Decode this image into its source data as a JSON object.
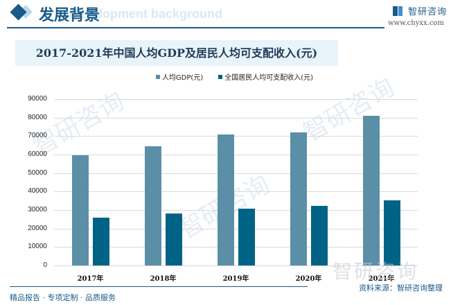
{
  "header": {
    "title": "发展背景",
    "subtitle_en": "Development background",
    "brand_name": "智研咨询",
    "brand_url": "www.chyxx.com"
  },
  "legend": [
    {
      "label": "人均GDP(元)",
      "color": "#5b8fa8"
    },
    {
      "label": "全国居民人均可支配收入(元)",
      "color": "#006385"
    }
  ],
  "axis": {
    "y_ticks": [
      "90000",
      "80000",
      "70000",
      "60000",
      "50000",
      "40000",
      "30000",
      "20000",
      "10000",
      "0"
    ],
    "x_ticks": [
      "2017年",
      "2018年",
      "2019年",
      "2020年",
      "2021年"
    ]
  },
  "footer": {
    "left": "精品报告 · 专项定制 · 品质服务",
    "source": "资料来源：智研咨询整理",
    "watermark": "智研咨询"
  },
  "chart_data": {
    "type": "bar",
    "title": "2017-2021年中国人均GDP及居民人均可支配收入(元)",
    "categories": [
      "2017年",
      "2018年",
      "2019年",
      "2020年",
      "2021年"
    ],
    "series": [
      {
        "name": "人均GDP(元)",
        "color": "#5b8fa8",
        "values": [
          59592,
          64644,
          70892,
          72000,
          80976
        ]
      },
      {
        "name": "全国居民人均可支配收入(元)",
        "color": "#006385",
        "values": [
          25974,
          28228,
          30733,
          32189,
          35128
        ]
      }
    ],
    "xlabel": "",
    "ylabel": "",
    "ylim": [
      0,
      90000
    ],
    "y_tick_step": 10000,
    "grid": true,
    "legend_position": "top"
  }
}
